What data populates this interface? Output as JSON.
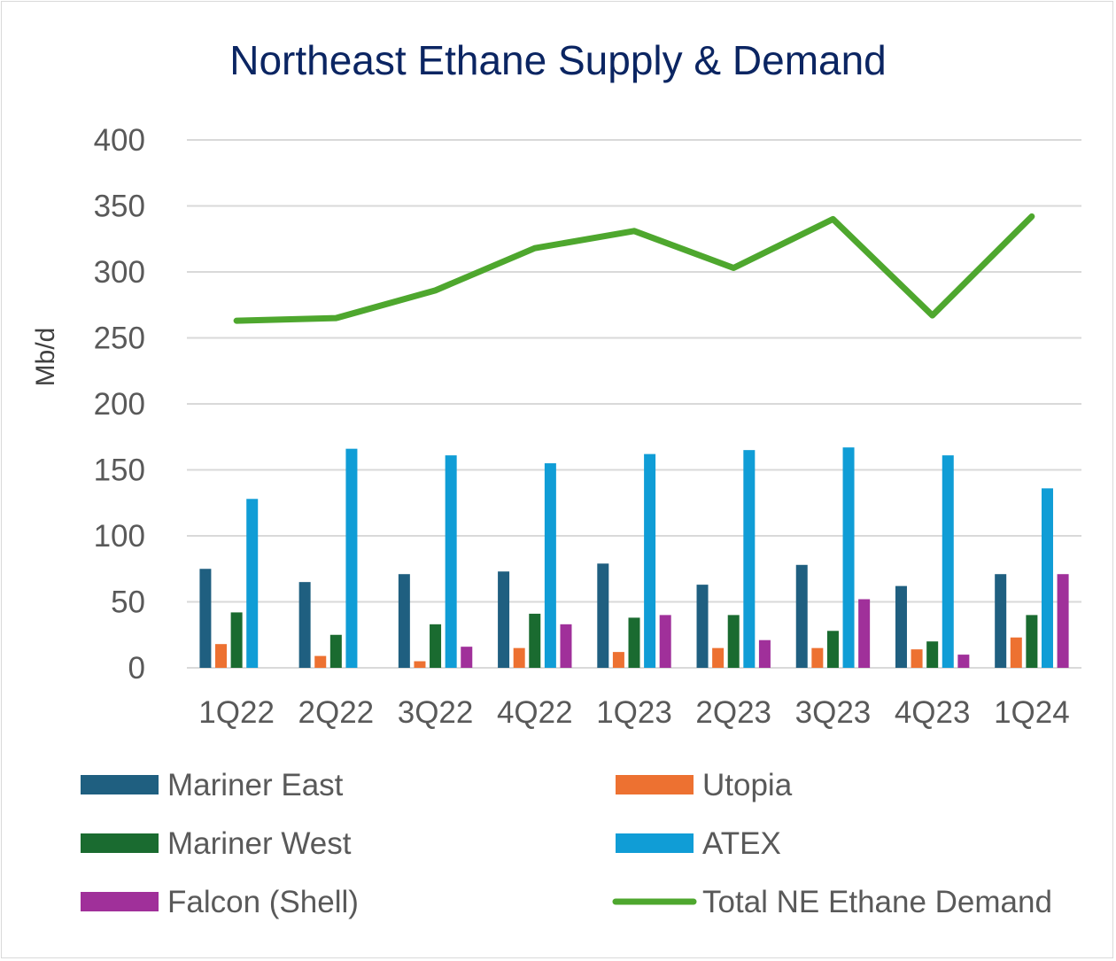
{
  "chart_data": {
    "type": "bar",
    "title": "Northeast Ethane Supply & Demand",
    "ylabel": "Mb/d",
    "xlabel": "",
    "ylim": [
      0,
      400
    ],
    "yticks": [
      0,
      50,
      100,
      150,
      200,
      250,
      300,
      350,
      400
    ],
    "grid": true,
    "legend_position": "bottom",
    "categories": [
      "1Q22",
      "2Q22",
      "3Q22",
      "4Q22",
      "1Q23",
      "2Q23",
      "3Q23",
      "4Q23",
      "1Q24"
    ],
    "series": [
      {
        "name": "Mariner East",
        "type": "bar",
        "color": "#1f5f80",
        "values": [
          75,
          65,
          71,
          73,
          79,
          63,
          78,
          62,
          71
        ]
      },
      {
        "name": "Utopia",
        "type": "bar",
        "color": "#ed7131",
        "values": [
          18,
          9,
          5,
          15,
          12,
          15,
          15,
          14,
          23
        ]
      },
      {
        "name": "Mariner West",
        "type": "bar",
        "color": "#1a6b30",
        "values": [
          42,
          25,
          33,
          41,
          38,
          40,
          28,
          20,
          40
        ]
      },
      {
        "name": "ATEX",
        "type": "bar",
        "color": "#109dd6",
        "values": [
          128,
          166,
          161,
          155,
          162,
          165,
          167,
          161,
          136
        ]
      },
      {
        "name": "Falcon (Shell)",
        "type": "bar",
        "color": "#a0309a",
        "values": [
          0,
          0,
          16,
          33,
          40,
          21,
          52,
          10,
          71
        ]
      },
      {
        "name": "Total NE Ethane Demand",
        "type": "line",
        "color": "#4ea72e",
        "values": [
          263,
          265,
          286,
          318,
          331,
          303,
          340,
          267,
          342
        ]
      }
    ]
  }
}
